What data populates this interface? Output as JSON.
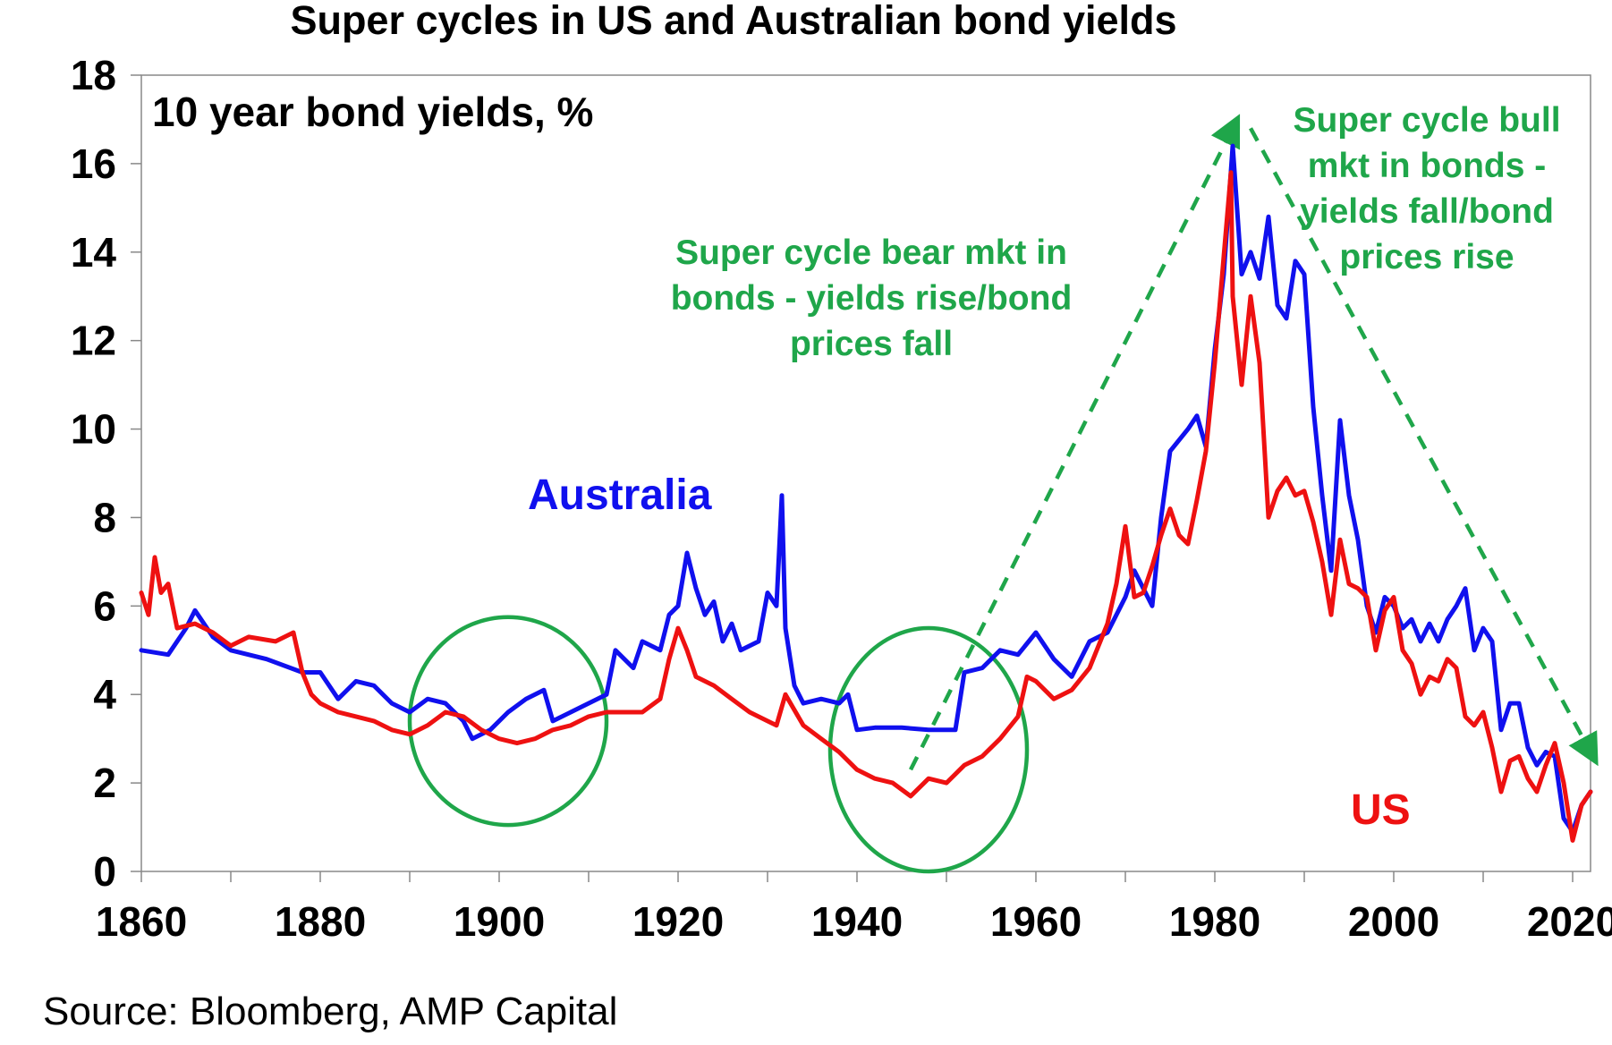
{
  "colors": {
    "australia": "#1010ee",
    "us": "#ee1111",
    "annotation": "#1fa64a",
    "axis": "#888888"
  },
  "chart_data": {
    "type": "line",
    "title": "Super cycles in US and Australian bond yields",
    "subtitle": "10 year bond yields, %",
    "source": "Source: Bloomberg, AMP Capital",
    "xlim": [
      1860,
      2022
    ],
    "ylim": [
      0,
      18
    ],
    "x_ticks": [
      1860,
      1880,
      1900,
      1920,
      1940,
      1960,
      1980,
      2000,
      2020
    ],
    "y_ticks": [
      0,
      2,
      4,
      6,
      8,
      10,
      12,
      14,
      16,
      18
    ],
    "grid": false,
    "series": [
      {
        "name": "Australia",
        "color": "#1010ee",
        "points": [
          [
            1860,
            5.0
          ],
          [
            1863,
            4.9
          ],
          [
            1865,
            5.5
          ],
          [
            1866,
            5.9
          ],
          [
            1868,
            5.3
          ],
          [
            1870,
            5.0
          ],
          [
            1874,
            4.8
          ],
          [
            1878,
            4.5
          ],
          [
            1880,
            4.5
          ],
          [
            1882,
            3.9
          ],
          [
            1884,
            4.3
          ],
          [
            1886,
            4.2
          ],
          [
            1888,
            3.8
          ],
          [
            1890,
            3.6
          ],
          [
            1892,
            3.9
          ],
          [
            1894,
            3.8
          ],
          [
            1896,
            3.4
          ],
          [
            1897,
            3.0
          ],
          [
            1899,
            3.2
          ],
          [
            1901,
            3.6
          ],
          [
            1903,
            3.9
          ],
          [
            1905,
            4.1
          ],
          [
            1906,
            3.4
          ],
          [
            1908,
            3.6
          ],
          [
            1910,
            3.8
          ],
          [
            1912,
            4.0
          ],
          [
            1913,
            5.0
          ],
          [
            1915,
            4.6
          ],
          [
            1916,
            5.2
          ],
          [
            1918,
            5.0
          ],
          [
            1919,
            5.8
          ],
          [
            1920,
            6.0
          ],
          [
            1921,
            7.2
          ],
          [
            1922,
            6.4
          ],
          [
            1923,
            5.8
          ],
          [
            1924,
            6.1
          ],
          [
            1925,
            5.2
          ],
          [
            1926,
            5.6
          ],
          [
            1927,
            5.0
          ],
          [
            1929,
            5.2
          ],
          [
            1930,
            6.3
          ],
          [
            1931,
            6.0
          ],
          [
            1931.6,
            8.5
          ],
          [
            1932,
            5.5
          ],
          [
            1933,
            4.2
          ],
          [
            1934,
            3.8
          ],
          [
            1936,
            3.9
          ],
          [
            1938,
            3.8
          ],
          [
            1939,
            4.0
          ],
          [
            1940,
            3.2
          ],
          [
            1942,
            3.25
          ],
          [
            1945,
            3.25
          ],
          [
            1948,
            3.2
          ],
          [
            1951,
            3.2
          ],
          [
            1952,
            4.5
          ],
          [
            1954,
            4.6
          ],
          [
            1956,
            5.0
          ],
          [
            1958,
            4.9
          ],
          [
            1960,
            5.4
          ],
          [
            1962,
            4.8
          ],
          [
            1964,
            4.4
          ],
          [
            1966,
            5.2
          ],
          [
            1968,
            5.4
          ],
          [
            1970,
            6.2
          ],
          [
            1971,
            6.8
          ],
          [
            1973,
            6.0
          ],
          [
            1974,
            8.0
          ],
          [
            1975,
            9.5
          ],
          [
            1977,
            10.0
          ],
          [
            1978,
            10.3
          ],
          [
            1979,
            9.6
          ],
          [
            1980,
            11.8
          ],
          [
            1981,
            13.5
          ],
          [
            1982,
            16.4
          ],
          [
            1983,
            13.5
          ],
          [
            1984,
            14.0
          ],
          [
            1985,
            13.4
          ],
          [
            1986,
            14.8
          ],
          [
            1987,
            12.8
          ],
          [
            1988,
            12.5
          ],
          [
            1989,
            13.8
          ],
          [
            1990,
            13.5
          ],
          [
            1991,
            10.5
          ],
          [
            1992,
            8.5
          ],
          [
            1993,
            6.8
          ],
          [
            1994,
            10.2
          ],
          [
            1995,
            8.5
          ],
          [
            1996,
            7.5
          ],
          [
            1997,
            6.0
          ],
          [
            1998,
            5.4
          ],
          [
            1999,
            6.2
          ],
          [
            2000,
            6.0
          ],
          [
            2001,
            5.5
          ],
          [
            2002,
            5.7
          ],
          [
            2003,
            5.2
          ],
          [
            2004,
            5.6
          ],
          [
            2005,
            5.2
          ],
          [
            2006,
            5.7
          ],
          [
            2007,
            6.0
          ],
          [
            2008,
            6.4
          ],
          [
            2009,
            5.0
          ],
          [
            2010,
            5.5
          ],
          [
            2011,
            5.2
          ],
          [
            2012,
            3.2
          ],
          [
            2013,
            3.8
          ],
          [
            2014,
            3.8
          ],
          [
            2015,
            2.8
          ],
          [
            2016,
            2.4
          ],
          [
            2017,
            2.7
          ],
          [
            2018,
            2.6
          ],
          [
            2019,
            1.2
          ],
          [
            2020,
            0.9
          ],
          [
            2021,
            1.5
          ],
          [
            2022,
            1.8
          ]
        ]
      },
      {
        "name": "US",
        "color": "#ee1111",
        "points": [
          [
            1860,
            6.3
          ],
          [
            1860.8,
            5.8
          ],
          [
            1861.5,
            7.1
          ],
          [
            1862.2,
            6.3
          ],
          [
            1863,
            6.5
          ],
          [
            1864,
            5.5
          ],
          [
            1866,
            5.6
          ],
          [
            1868,
            5.4
          ],
          [
            1870,
            5.1
          ],
          [
            1872,
            5.3
          ],
          [
            1875,
            5.2
          ],
          [
            1877,
            5.4
          ],
          [
            1878,
            4.5
          ],
          [
            1879,
            4.0
          ],
          [
            1880,
            3.8
          ],
          [
            1882,
            3.6
          ],
          [
            1884,
            3.5
          ],
          [
            1886,
            3.4
          ],
          [
            1888,
            3.2
          ],
          [
            1890,
            3.1
          ],
          [
            1892,
            3.3
          ],
          [
            1894,
            3.6
          ],
          [
            1896,
            3.5
          ],
          [
            1898,
            3.2
          ],
          [
            1900,
            3.0
          ],
          [
            1902,
            2.9
          ],
          [
            1904,
            3.0
          ],
          [
            1906,
            3.2
          ],
          [
            1908,
            3.3
          ],
          [
            1910,
            3.5
          ],
          [
            1912,
            3.6
          ],
          [
            1914,
            3.6
          ],
          [
            1916,
            3.6
          ],
          [
            1918,
            3.9
          ],
          [
            1919,
            4.8
          ],
          [
            1920,
            5.5
          ],
          [
            1921,
            5.0
          ],
          [
            1922,
            4.4
          ],
          [
            1924,
            4.2
          ],
          [
            1926,
            3.9
          ],
          [
            1928,
            3.6
          ],
          [
            1930,
            3.4
          ],
          [
            1931,
            3.3
          ],
          [
            1932,
            4.0
          ],
          [
            1934,
            3.3
          ],
          [
            1936,
            3.0
          ],
          [
            1938,
            2.7
          ],
          [
            1940,
            2.3
          ],
          [
            1942,
            2.1
          ],
          [
            1944,
            2.0
          ],
          [
            1946,
            1.7
          ],
          [
            1948,
            2.1
          ],
          [
            1950,
            2.0
          ],
          [
            1952,
            2.4
          ],
          [
            1954,
            2.6
          ],
          [
            1956,
            3.0
          ],
          [
            1958,
            3.5
          ],
          [
            1959,
            4.4
          ],
          [
            1960,
            4.3
          ],
          [
            1962,
            3.9
          ],
          [
            1964,
            4.1
          ],
          [
            1966,
            4.6
          ],
          [
            1968,
            5.6
          ],
          [
            1969,
            6.5
          ],
          [
            1970,
            7.8
          ],
          [
            1971,
            6.2
          ],
          [
            1972,
            6.3
          ],
          [
            1973,
            6.9
          ],
          [
            1974,
            7.6
          ],
          [
            1975,
            8.2
          ],
          [
            1976,
            7.6
          ],
          [
            1977,
            7.4
          ],
          [
            1978,
            8.4
          ],
          [
            1979,
            9.5
          ],
          [
            1980,
            11.5
          ],
          [
            1981,
            13.9
          ],
          [
            1981.8,
            15.8
          ],
          [
            1982,
            13.0
          ],
          [
            1983,
            11.0
          ],
          [
            1984,
            13.0
          ],
          [
            1985,
            11.5
          ],
          [
            1986,
            8.0
          ],
          [
            1987,
            8.6
          ],
          [
            1988,
            8.9
          ],
          [
            1989,
            8.5
          ],
          [
            1990,
            8.6
          ],
          [
            1991,
            7.9
          ],
          [
            1992,
            7.0
          ],
          [
            1993,
            5.8
          ],
          [
            1994,
            7.5
          ],
          [
            1995,
            6.5
          ],
          [
            1996,
            6.4
          ],
          [
            1997,
            6.2
          ],
          [
            1998,
            5.0
          ],
          [
            1999,
            5.9
          ],
          [
            2000,
            6.2
          ],
          [
            2001,
            5.0
          ],
          [
            2002,
            4.7
          ],
          [
            2003,
            4.0
          ],
          [
            2004,
            4.4
          ],
          [
            2005,
            4.3
          ],
          [
            2006,
            4.8
          ],
          [
            2007,
            4.6
          ],
          [
            2008,
            3.5
          ],
          [
            2009,
            3.3
          ],
          [
            2010,
            3.6
          ],
          [
            2011,
            2.8
          ],
          [
            2012,
            1.8
          ],
          [
            2013,
            2.5
          ],
          [
            2014,
            2.6
          ],
          [
            2015,
            2.1
          ],
          [
            2016,
            1.8
          ],
          [
            2017,
            2.4
          ],
          [
            2018,
            2.9
          ],
          [
            2019,
            2.0
          ],
          [
            2020,
            0.7
          ],
          [
            2021,
            1.5
          ],
          [
            2022,
            1.8
          ]
        ]
      }
    ],
    "annotations": {
      "australia_label": "Australia",
      "us_label": "US",
      "bear_text": [
        "Super cycle bear mkt in",
        "bonds - yields rise/bond",
        "prices fall"
      ],
      "bull_text": [
        "Super cycle bull",
        "mkt in bonds -",
        "yields fall/bond",
        "prices rise"
      ],
      "bear_arrow": {
        "from": [
          1946,
          2.3
        ],
        "to": [
          1982,
          16.8
        ]
      },
      "bull_arrow": {
        "from": [
          1984,
          16.8
        ],
        "to": [
          2022,
          2.7
        ]
      },
      "circles": [
        {
          "cx": 1901,
          "cy": 3.4,
          "rx": 11,
          "ry": 2.35
        },
        {
          "cx": 1948,
          "cy": 2.75,
          "rx": 11,
          "ry": 2.75
        }
      ]
    }
  }
}
